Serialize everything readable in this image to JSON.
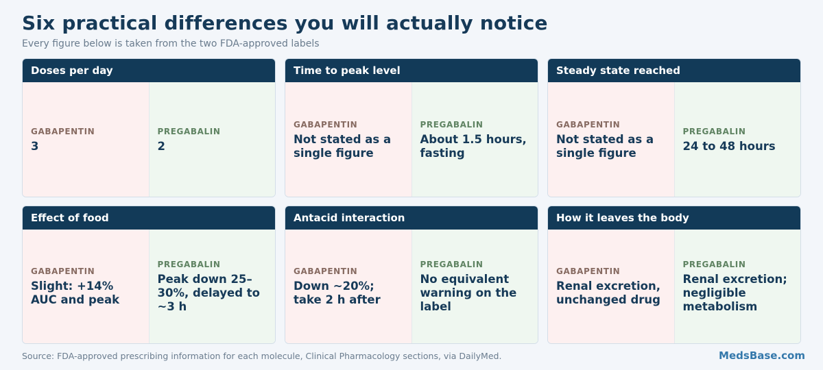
{
  "header": {
    "title": "Six practical differences you will actually notice",
    "subtitle": "Every figure below is taken from the two FDA-approved labels"
  },
  "drugs": {
    "a": "GABAPENTIN",
    "b": "PREGABALIN"
  },
  "cards": [
    {
      "title": "Doses per day",
      "gabapentin": "3",
      "pregabalin": "2"
    },
    {
      "title": "Time to peak level",
      "gabapentin": "Not stated as a single figure",
      "pregabalin": "About 1.5 hours, fasting"
    },
    {
      "title": "Steady state reached",
      "gabapentin": "Not stated as a single figure",
      "pregabalin": "24 to 48 hours"
    },
    {
      "title": "Effect of food",
      "gabapentin": "Slight: +14% AUC and peak",
      "pregabalin": "Peak down 25–30%, delayed to ~3 h"
    },
    {
      "title": "Antacid interaction",
      "gabapentin": "Down ~20%; take 2 h after",
      "pregabalin": "No equivalent warning on the label"
    },
    {
      "title": "How it leaves the body",
      "gabapentin": "Renal excretion, unchanged drug",
      "pregabalin": "Renal excretion; negligible metabolism"
    }
  ],
  "footer": {
    "source": "Source: FDA-approved prescribing information for each molecule, Clinical Pharmacology sections, via DailyMed.",
    "brand": "MedsBase.com"
  },
  "colors": {
    "header_bg": "#123a58",
    "title": "#163a58",
    "gabapentin_bg": "#fdf0f0",
    "pregabalin_bg": "#eff7f0",
    "gabapentin_label": "#876b62",
    "pregabalin_label": "#5f8362",
    "brand": "#3478ab"
  }
}
